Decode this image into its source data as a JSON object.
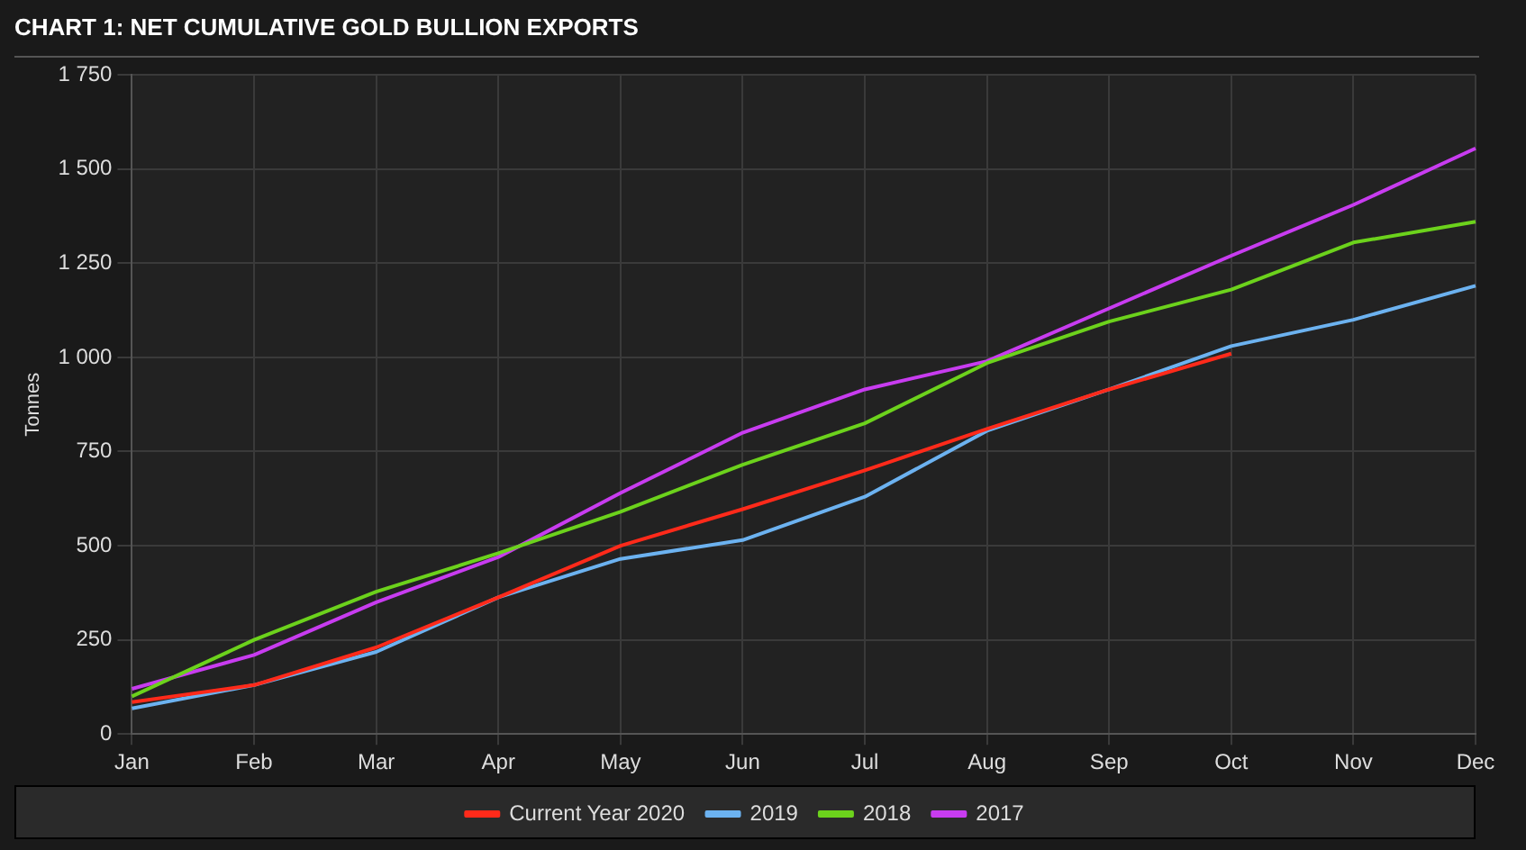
{
  "chart_data": {
    "type": "line",
    "title": "CHART 1: NET CUMULATIVE GOLD BULLION EXPORTS",
    "ylabel": "Tonnes",
    "categories": [
      "Jan",
      "Feb",
      "Mar",
      "Apr",
      "May",
      "Jun",
      "Jul",
      "Aug",
      "Sep",
      "Oct",
      "Nov",
      "Dec"
    ],
    "series": [
      {
        "name": "Current Year 2020",
        "color": "#ff2a1a",
        "values": [
          85,
          130,
          230,
          363,
          500,
          597,
          700,
          810,
          915,
          1010,
          null,
          null
        ]
      },
      {
        "name": "2019",
        "color": "#6cb2f0",
        "values": [
          68,
          130,
          218,
          363,
          465,
          515,
          630,
          805,
          915,
          1030,
          1100,
          1190
        ]
      },
      {
        "name": "2018",
        "color": "#6cd21c",
        "values": [
          100,
          250,
          378,
          480,
          590,
          715,
          825,
          985,
          1095,
          1180,
          1305,
          1360
        ]
      },
      {
        "name": "2017",
        "color": "#c83cf0",
        "values": [
          120,
          210,
          350,
          470,
          640,
          800,
          915,
          990,
          1130,
          1270,
          1405,
          1555
        ]
      }
    ],
    "ylim": [
      0,
      1750
    ],
    "yticks": [
      0,
      250,
      500,
      750,
      {
        "value": 1000,
        "label": "1 000"
      },
      {
        "value": 1250,
        "label": "1 250"
      },
      {
        "value": 1500,
        "label": "1 500"
      },
      {
        "value": 1750,
        "label": "1 750"
      }
    ],
    "grid": true,
    "legend": "bottom",
    "marker": "none",
    "line_style": "solid"
  }
}
